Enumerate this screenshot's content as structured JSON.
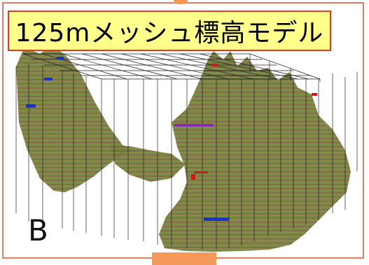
{
  "title": "125mメッシュ標高モデル",
  "panel_label": "B",
  "colors": {
    "frame_border": "#e07b67",
    "title_bg": "#ffff8c",
    "title_border": "#e23a23",
    "tab_orange": "#f39a5a",
    "terrain_green": "#6f8a3a",
    "terrain_brown": "#8a5a3c",
    "marker_blue": "#1a2fd6",
    "marker_red": "#d01818",
    "marker_purple": "#8a2bb0"
  },
  "icons": [
    "terrain-model-graphic",
    "point-marker-icon"
  ]
}
